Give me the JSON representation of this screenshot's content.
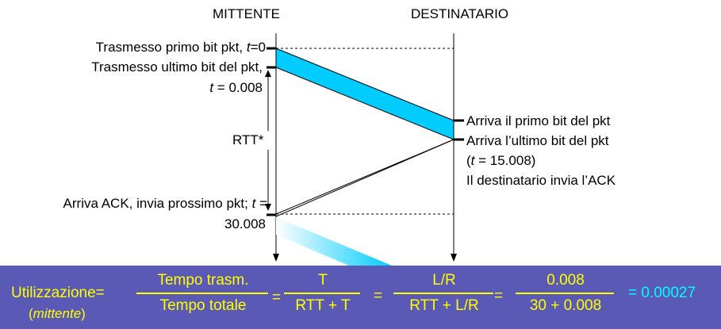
{
  "header": {
    "sender": "MITTENTE",
    "receiver": "DESTINATARIO"
  },
  "sender_events": {
    "first_bit": "Trasmesso primo bit pkt, t=0",
    "first_bit_prefix": "Trasmesso primo bit pkt, ",
    "first_bit_t": "t",
    "first_bit_val": "=0",
    "last_bit_line1": "Trasmesso ultimo bit del pkt,",
    "last_bit_t": "t",
    "last_bit_val": " = 0.008",
    "rtt_label": "RTT*",
    "ack_line1_prefix": "Arriva ACK, invia prossimo pkt; ",
    "ack_t": "t",
    "ack_line1_suffix": " =",
    "ack_line2": "30.008"
  },
  "receiver_events": {
    "first_bit": "Arriva il primo bit del pkt",
    "last_bit": "Arriva l’ultimo bit del pkt",
    "time_open": "(",
    "time_t": "t",
    "time_val": " = 15.008)",
    "ack_sent": "Il destinatario invia l’ACK"
  },
  "formula": {
    "label": "Utilizzazione=",
    "sublabel_open": "(",
    "sublabel": "mittente",
    "sublabel_close": ")",
    "frac1_num": "Tempo trasm.",
    "frac1_den": "Tempo totale",
    "eq1": "=",
    "frac2_num": "T",
    "frac2_den": "RTT + T",
    "eq2": "=",
    "frac3_num": "L/R",
    "frac3_den": "RTT + L/R",
    "eq3": "=",
    "frac4_num": "0.008",
    "frac4_den": "30 + 0.008",
    "result": "= 0.00027"
  },
  "colors": {
    "packet": "#00ccff",
    "bar": "#5a5ab6",
    "formula_text": "#ffff00",
    "result_text": "#00ffff"
  }
}
